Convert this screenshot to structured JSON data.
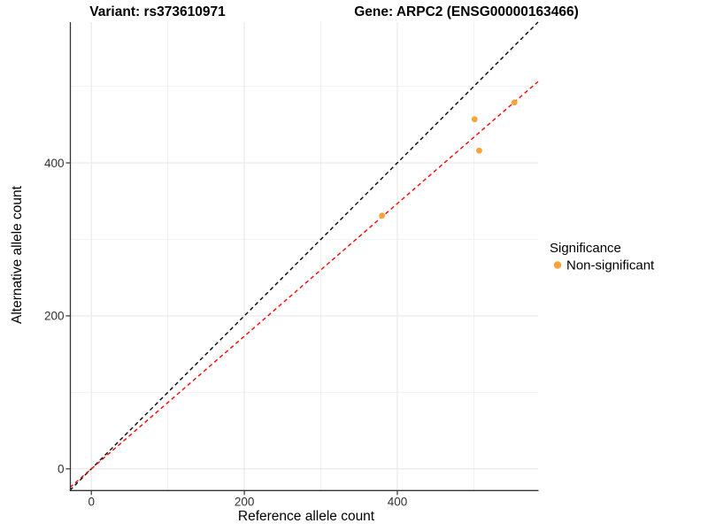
{
  "chart_data": {
    "type": "scatter",
    "title_left": "Variant: rs373610971",
    "title_right": "Gene: ARPC2 (ENSG00000163466)",
    "xlabel": "Reference allele count",
    "ylabel": "Alternative allele count",
    "xlim": [
      -28,
      584
    ],
    "ylim": [
      -28,
      584
    ],
    "x_major_ticks": [
      0,
      200,
      400
    ],
    "x_tick_labels": [
      "0",
      "200",
      "400"
    ],
    "y_major_ticks": [
      0,
      200,
      400
    ],
    "y_tick_labels": [
      "0",
      "200",
      "400"
    ],
    "x_minor_gridlines": [
      100,
      300,
      500
    ],
    "y_minor_gridlines": [
      100,
      300,
      500
    ],
    "grid": "on",
    "legend_position": "right",
    "series": [
      {
        "name": "Non-significant",
        "color": "#F9A239",
        "points": [
          {
            "x": 380,
            "y": 331
          },
          {
            "x": 501,
            "y": 457
          },
          {
            "x": 507,
            "y": 416
          },
          {
            "x": 553,
            "y": 479
          }
        ]
      }
    ],
    "lines": [
      {
        "name": "identity",
        "slope": 1,
        "intercept": 0,
        "color": "#000000",
        "style": "dashed"
      },
      {
        "name": "fit",
        "slope": 0.867,
        "intercept": 0,
        "color": "#FF0000",
        "style": "dashed"
      }
    ],
    "legend": {
      "title": "Significance",
      "items": [
        {
          "label": "Non-significant",
          "color": "#F9A239"
        }
      ]
    },
    "colors": {
      "background": "#FFFFFF",
      "grid_major": "#E7E7E7",
      "grid_minor": "#F0F0F0",
      "axis_line": "#333333",
      "tick_mark": "#333333",
      "tick_text": "#303030",
      "point": "#F9A239",
      "identity_line": "#000000",
      "fit_line": "#FF0000"
    }
  }
}
